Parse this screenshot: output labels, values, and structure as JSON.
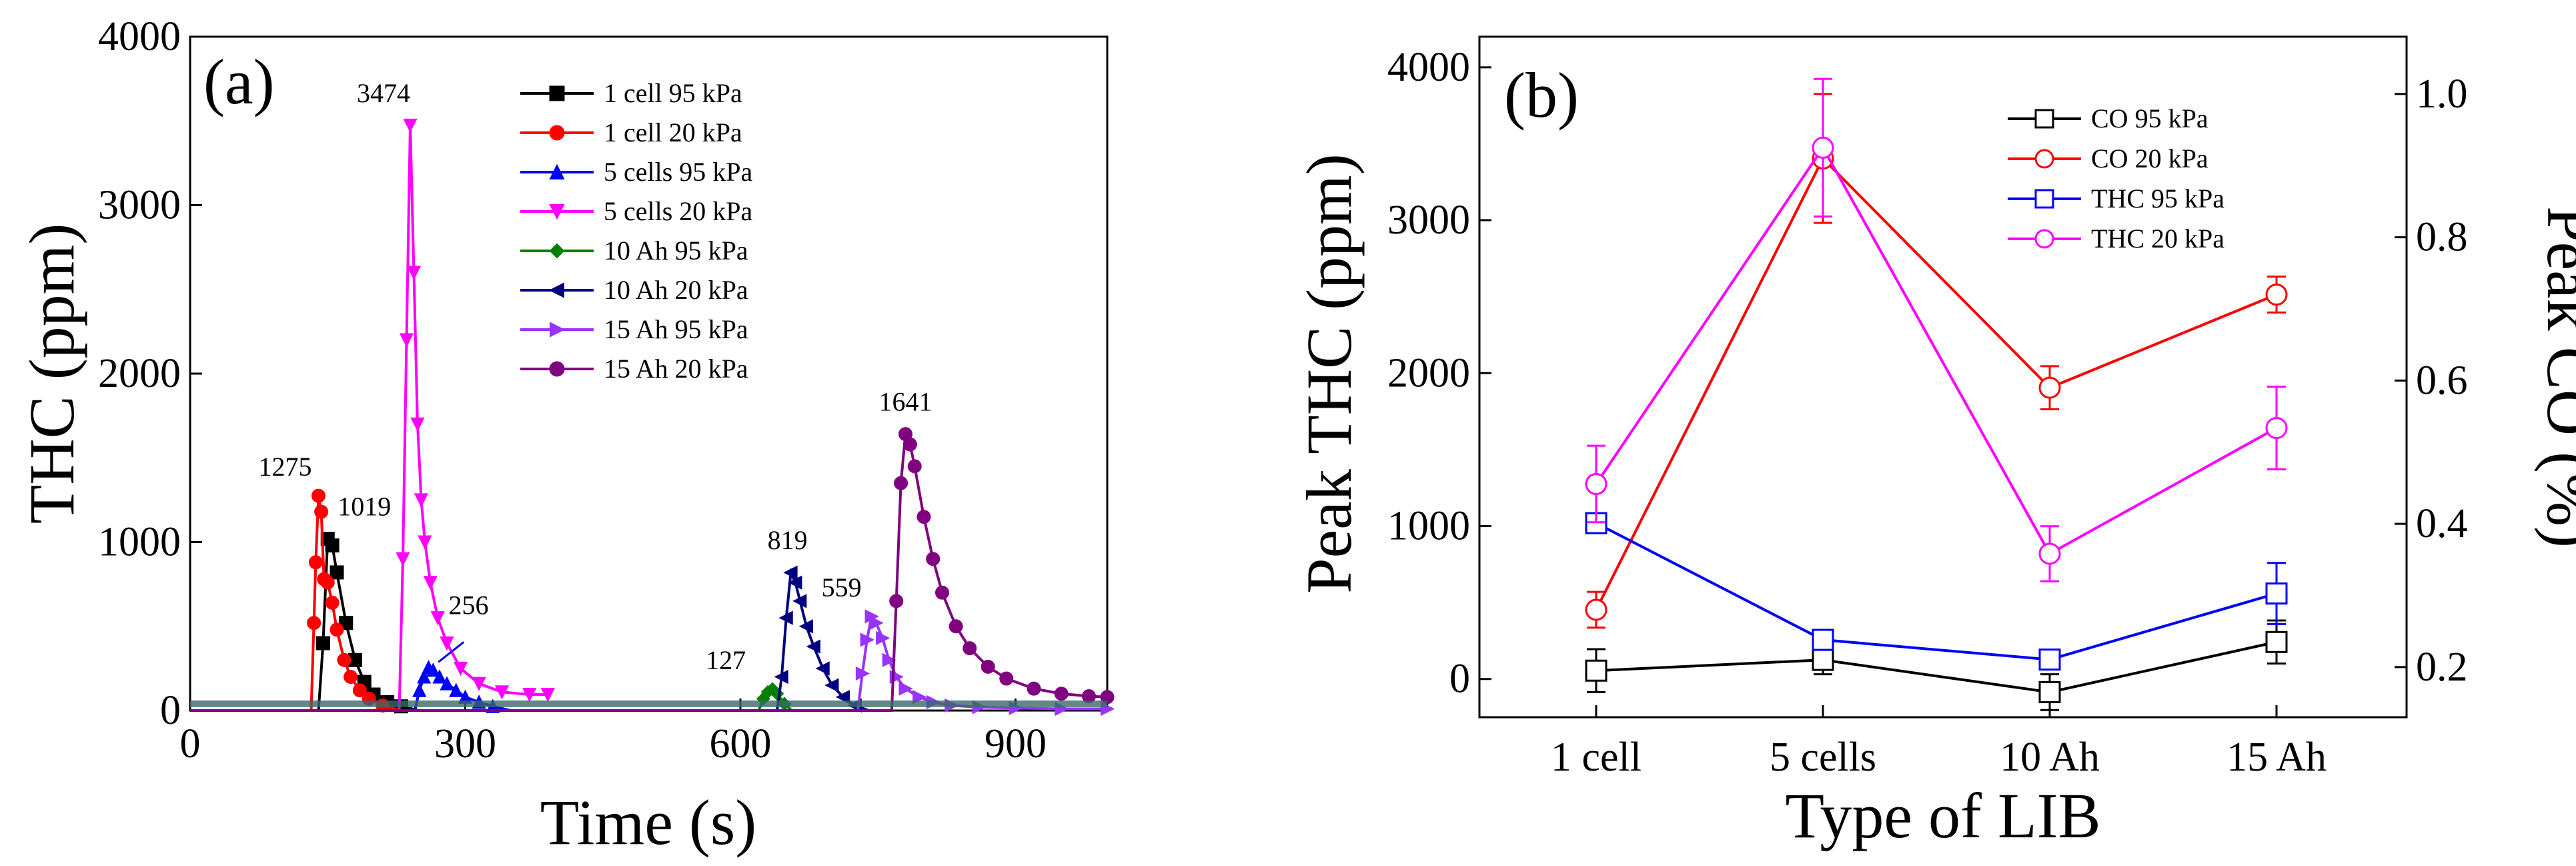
{
  "chart_data": [
    {
      "type": "line",
      "panel_label": "(a)",
      "xlabel": "Time (s)",
      "ylabel": "THC (ppm)",
      "xlim": [
        0,
        1000
      ],
      "ylim": [
        0,
        4000
      ],
      "x_ticks": [
        "0",
        "300",
        "600",
        "900"
      ],
      "y_ticks": [
        "0",
        "1000",
        "2000",
        "3000",
        "4000"
      ],
      "legend_position": "top-center",
      "grid": false,
      "series": [
        {
          "name": "1 cell 95 kPa",
          "color": "#000000",
          "marker": "square",
          "x": [
            0,
            140,
            145,
            150,
            155,
            160,
            170,
            180,
            190,
            200,
            215,
            230,
            250
          ],
          "y": [
            0,
            0,
            400,
            1019,
            980,
            820,
            520,
            300,
            170,
            95,
            50,
            25,
            0
          ]
        },
        {
          "name": "1 cell 20 kPa",
          "color": "#ff0000",
          "marker": "circle",
          "x": [
            0,
            132,
            135,
            137,
            140,
            143,
            146,
            150,
            155,
            160,
            168,
            175,
            185,
            195,
            210,
            230
          ],
          "y": [
            0,
            0,
            520,
            880,
            1275,
            1180,
            780,
            760,
            640,
            480,
            300,
            200,
            120,
            70,
            30,
            0
          ]
        },
        {
          "name": "5 cells 95 kPa",
          "color": "#0000ff",
          "marker": "triangle-up",
          "x": [
            0,
            245,
            250,
            255,
            260,
            265,
            272,
            280,
            290,
            300,
            315,
            330,
            350
          ],
          "y": [
            0,
            0,
            120,
            200,
            256,
            240,
            200,
            160,
            120,
            80,
            50,
            25,
            0
          ]
        },
        {
          "name": "5 cells 20 kPa",
          "color": "#ff00ff",
          "marker": "triangle-down",
          "x": [
            0,
            228,
            232,
            236,
            240,
            244,
            248,
            252,
            256,
            262,
            270,
            280,
            295,
            315,
            340,
            370,
            390
          ],
          "y": [
            0,
            0,
            900,
            2200,
            3474,
            2600,
            1700,
            1250,
            1000,
            760,
            550,
            400,
            250,
            160,
            110,
            95,
            95
          ]
        },
        {
          "name": "10 Ah 95 kPa",
          "color": "#008000",
          "marker": "diamond",
          "x": [
            0,
            620,
            625,
            630,
            635,
            640,
            648,
            656
          ],
          "y": [
            0,
            0,
            70,
            110,
            127,
            100,
            40,
            0
          ]
        },
        {
          "name": "10 Ah 20 kPa",
          "color": "#000080",
          "marker": "triangle-left",
          "x": [
            0,
            640,
            645,
            650,
            655,
            660,
            665,
            672,
            680,
            690,
            700,
            712,
            725,
            740
          ],
          "y": [
            0,
            0,
            200,
            550,
            819,
            760,
            650,
            500,
            380,
            250,
            150,
            80,
            30,
            0
          ]
        },
        {
          "name": "15 Ah 95 kPa",
          "color": "#9933ff",
          "marker": "triangle-right",
          "x": [
            0,
            728,
            733,
            738,
            743,
            748,
            755,
            762,
            770,
            780,
            795,
            810,
            830,
            860,
            900,
            950,
            1000
          ],
          "y": [
            0,
            0,
            220,
            420,
            559,
            520,
            430,
            300,
            200,
            130,
            80,
            50,
            30,
            20,
            15,
            10,
            10
          ]
        },
        {
          "name": "15 Ah 20 kPa",
          "color": "#800080",
          "marker": "circle",
          "x": [
            0,
            765,
            770,
            775,
            780,
            785,
            790,
            800,
            810,
            820,
            835,
            850,
            870,
            890,
            920,
            950,
            980,
            1000
          ],
          "y": [
            0,
            0,
            650,
            1350,
            1641,
            1580,
            1450,
            1150,
            900,
            700,
            500,
            370,
            260,
            190,
            130,
            100,
            85,
            80
          ]
        }
      ],
      "annotations": [
        {
          "text": "1275",
          "x": 140,
          "y": 1275
        },
        {
          "text": "1019",
          "x": 150,
          "y": 1019
        },
        {
          "text": "3474",
          "x": 240,
          "y": 3474
        },
        {
          "text": "256",
          "x": 260,
          "y": 256
        },
        {
          "text": "127",
          "x": 635,
          "y": 127
        },
        {
          "text": "819",
          "x": 655,
          "y": 819
        },
        {
          "text": "559",
          "x": 743,
          "y": 559
        },
        {
          "text": "1641",
          "x": 780,
          "y": 1641
        }
      ]
    },
    {
      "type": "line",
      "panel_label": "(b)",
      "xlabel": "Type of LIB",
      "ylabel": "Peak THC (ppm)",
      "y2label": "Peak CO (%)",
      "categories": [
        "1 cell",
        "5 cells",
        "10 Ah",
        "15 Ah"
      ],
      "ylim": [
        -250,
        4200
      ],
      "y2lim": [
        0.13,
        1.08
      ],
      "y_ticks": [
        "0",
        "1000",
        "2000",
        "3000",
        "4000"
      ],
      "y2_ticks": [
        "0.2",
        "0.4",
        "0.6",
        "0.8",
        "1.0"
      ],
      "legend_position": "top-right",
      "grid": false,
      "series": [
        {
          "name": "CO 95 kPa",
          "axis": "right",
          "color": "#000000",
          "marker": "square",
          "values": [
            0.195,
            0.21,
            0.165,
            0.235
          ],
          "errors": [
            0.03,
            0.02,
            0.025,
            0.03
          ]
        },
        {
          "name": "CO 20 kPa",
          "axis": "right",
          "color": "#ff0000",
          "marker": "circle",
          "values": [
            0.28,
            0.91,
            0.59,
            0.72
          ],
          "errors": [
            0.025,
            0.09,
            0.03,
            0.025
          ]
        },
        {
          "name": "THC 95 kPa",
          "axis": "left",
          "color": "#0000ff",
          "marker": "square",
          "values": [
            1019,
            256,
            127,
            559
          ],
          "errors": [
            0,
            60,
            40,
            200
          ]
        },
        {
          "name": "THC 20 kPa",
          "axis": "left",
          "color": "#ff00ff",
          "marker": "circle",
          "values": [
            1275,
            3474,
            819,
            1641
          ],
          "errors": [
            250,
            450,
            180,
            270
          ]
        }
      ]
    }
  ]
}
